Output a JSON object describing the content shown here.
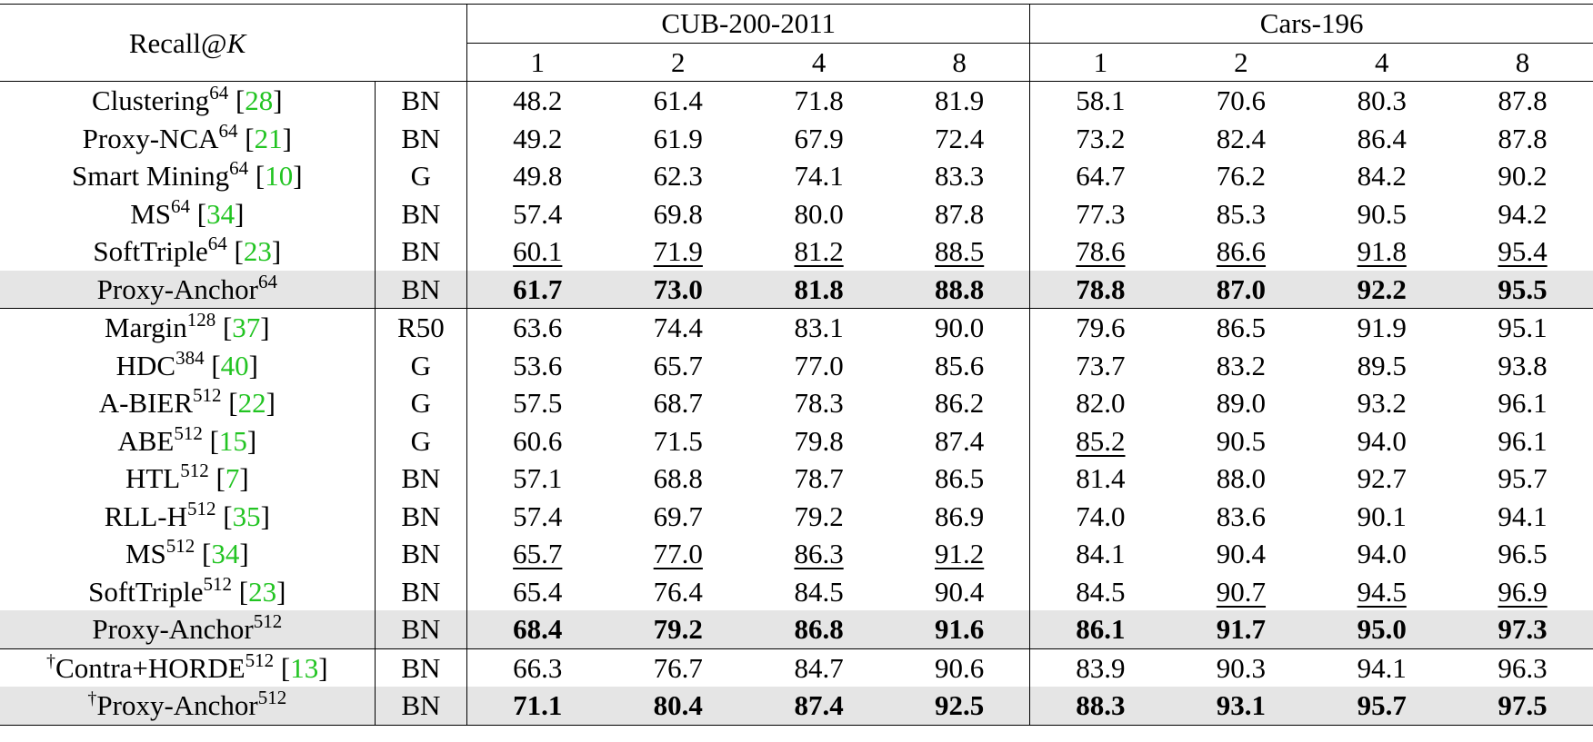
{
  "header": {
    "recall_prefix": "Recall@",
    "recall_var": "K",
    "datasets": [
      "CUB-200-2011",
      "Cars-196"
    ],
    "k_values": [
      "1",
      "2",
      "4",
      "8",
      "1",
      "2",
      "4",
      "8"
    ]
  },
  "groups": [
    {
      "rows": [
        {
          "dagger": "",
          "name": "Clustering",
          "dim": "64",
          "cite": "28",
          "backbone": "BN",
          "values": [
            "48.2",
            "61.4",
            "71.8",
            "81.9",
            "58.1",
            "70.6",
            "80.3",
            "87.8"
          ],
          "underline": [],
          "highlight": false
        },
        {
          "dagger": "",
          "name": "Proxy-NCA",
          "dim": "64",
          "cite": "21",
          "backbone": "BN",
          "values": [
            "49.2",
            "61.9",
            "67.9",
            "72.4",
            "73.2",
            "82.4",
            "86.4",
            "87.8"
          ],
          "underline": [],
          "highlight": false
        },
        {
          "dagger": "",
          "name": "Smart Mining",
          "dim": "64",
          "cite": "10",
          "backbone": "G",
          "values": [
            "49.8",
            "62.3",
            "74.1",
            "83.3",
            "64.7",
            "76.2",
            "84.2",
            "90.2"
          ],
          "underline": [],
          "highlight": false
        },
        {
          "dagger": "",
          "name": "MS",
          "dim": "64",
          "cite": "34",
          "backbone": "BN",
          "values": [
            "57.4",
            "69.8",
            "80.0",
            "87.8",
            "77.3",
            "85.3",
            "90.5",
            "94.2"
          ],
          "underline": [],
          "highlight": false
        },
        {
          "dagger": "",
          "name": "SoftTriple",
          "dim": "64",
          "cite": "23",
          "backbone": "BN",
          "values": [
            "60.1",
            "71.9",
            "81.2",
            "88.5",
            "78.6",
            "86.6",
            "91.8",
            "95.4"
          ],
          "underline": [
            0,
            1,
            2,
            3,
            4,
            5,
            6,
            7
          ],
          "highlight": false
        },
        {
          "dagger": "",
          "name": "Proxy-Anchor",
          "dim": "64",
          "cite": "",
          "backbone": "BN",
          "values": [
            "61.7",
            "73.0",
            "81.8",
            "88.8",
            "78.8",
            "87.0",
            "92.2",
            "95.5"
          ],
          "underline": [],
          "highlight": true
        }
      ]
    },
    {
      "rows": [
        {
          "dagger": "",
          "name": "Margin",
          "dim": "128",
          "cite": "37",
          "backbone": "R50",
          "values": [
            "63.6",
            "74.4",
            "83.1",
            "90.0",
            "79.6",
            "86.5",
            "91.9",
            "95.1"
          ],
          "underline": [],
          "highlight": false
        },
        {
          "dagger": "",
          "name": "HDC",
          "dim": "384",
          "cite": "40",
          "backbone": "G",
          "values": [
            "53.6",
            "65.7",
            "77.0",
            "85.6",
            "73.7",
            "83.2",
            "89.5",
            "93.8"
          ],
          "underline": [],
          "highlight": false
        },
        {
          "dagger": "",
          "name": "A-BIER",
          "dim": "512",
          "cite": "22",
          "backbone": "G",
          "values": [
            "57.5",
            "68.7",
            "78.3",
            "86.2",
            "82.0",
            "89.0",
            "93.2",
            "96.1"
          ],
          "underline": [],
          "highlight": false
        },
        {
          "dagger": "",
          "name": "ABE",
          "dim": "512",
          "cite": "15",
          "backbone": "G",
          "values": [
            "60.6",
            "71.5",
            "79.8",
            "87.4",
            "85.2",
            "90.5",
            "94.0",
            "96.1"
          ],
          "underline": [
            4
          ],
          "highlight": false
        },
        {
          "dagger": "",
          "name": "HTL",
          "dim": "512",
          "cite": "7",
          "backbone": "BN",
          "values": [
            "57.1",
            "68.8",
            "78.7",
            "86.5",
            "81.4",
            "88.0",
            "92.7",
            "95.7"
          ],
          "underline": [],
          "highlight": false
        },
        {
          "dagger": "",
          "name": "RLL-H",
          "dim": "512",
          "cite": "35",
          "backbone": "BN",
          "values": [
            "57.4",
            "69.7",
            "79.2",
            "86.9",
            "74.0",
            "83.6",
            "90.1",
            "94.1"
          ],
          "underline": [],
          "highlight": false
        },
        {
          "dagger": "",
          "name": "MS",
          "dim": "512",
          "cite": "34",
          "backbone": "BN",
          "values": [
            "65.7",
            "77.0",
            "86.3",
            "91.2",
            "84.1",
            "90.4",
            "94.0",
            "96.5"
          ],
          "underline": [
            0,
            1,
            2,
            3
          ],
          "highlight": false
        },
        {
          "dagger": "",
          "name": "SoftTriple",
          "dim": "512",
          "cite": "23",
          "backbone": "BN",
          "values": [
            "65.4",
            "76.4",
            "84.5",
            "90.4",
            "84.5",
            "90.7",
            "94.5",
            "96.9"
          ],
          "underline": [
            5,
            6,
            7
          ],
          "highlight": false
        },
        {
          "dagger": "",
          "name": "Proxy-Anchor",
          "dim": "512",
          "cite": "",
          "backbone": "BN",
          "values": [
            "68.4",
            "79.2",
            "86.8",
            "91.6",
            "86.1",
            "91.7",
            "95.0",
            "97.3"
          ],
          "underline": [],
          "highlight": true
        }
      ]
    },
    {
      "rows": [
        {
          "dagger": "†",
          "name": "Contra+HORDE",
          "dim": "512",
          "cite": "13",
          "backbone": "BN",
          "values": [
            "66.3",
            "76.7",
            "84.7",
            "90.6",
            "83.9",
            "90.3",
            "94.1",
            "96.3"
          ],
          "underline": [],
          "highlight": false
        },
        {
          "dagger": "†",
          "name": "Proxy-Anchor",
          "dim": "512",
          "cite": "",
          "backbone": "BN",
          "values": [
            "71.1",
            "80.4",
            "87.4",
            "92.5",
            "88.3",
            "93.1",
            "95.7",
            "97.5"
          ],
          "underline": [],
          "highlight": true
        }
      ]
    }
  ]
}
